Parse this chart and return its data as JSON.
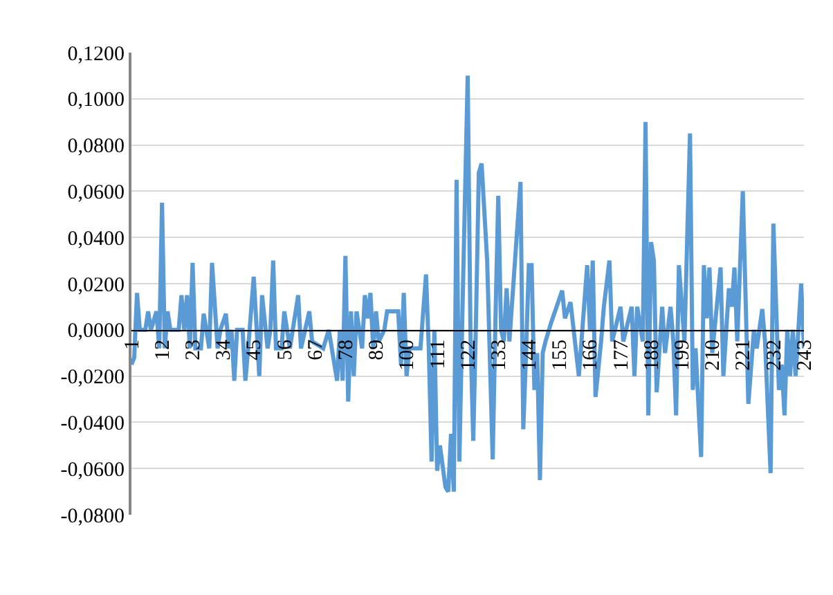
{
  "chart_data": {
    "type": "line",
    "grid": "y",
    "x": [
      1,
      2,
      3,
      4,
      6,
      7,
      8,
      10,
      11,
      12,
      13,
      14,
      15,
      18,
      19,
      20,
      21,
      22,
      23,
      24,
      26,
      27,
      29,
      30,
      32,
      33,
      35,
      36,
      37,
      38,
      39,
      41,
      42,
      43,
      45,
      47,
      48,
      50,
      51,
      52,
      53,
      55,
      56,
      57,
      58,
      61,
      62,
      65,
      66,
      70,
      72,
      75,
      76,
      77,
      78,
      79,
      80,
      81,
      82,
      84,
      85,
      86,
      87,
      88,
      89,
      90,
      92,
      93,
      95,
      97,
      98,
      99,
      100,
      101,
      105,
      107,
      108,
      109,
      110,
      111,
      112,
      114,
      115,
      116,
      117,
      118,
      119,
      120,
      122,
      123,
      124,
      125,
      126,
      127,
      129,
      131,
      132,
      133,
      134,
      135,
      136,
      137,
      141,
      142,
      143,
      144,
      145,
      146,
      147,
      148,
      149,
      150,
      152,
      156,
      157,
      159,
      162,
      165,
      166,
      167,
      168,
      170,
      171,
      173,
      174,
      177,
      178,
      181,
      182,
      183,
      185,
      186,
      187,
      188,
      189,
      190,
      192,
      193,
      195,
      196,
      197,
      198,
      200,
      202,
      203,
      204,
      206,
      207,
      208,
      209,
      210,
      213,
      214,
      216,
      217,
      218,
      219,
      221,
      223,
      225,
      226,
      228,
      229,
      231,
      232,
      234,
      235,
      236,
      237,
      238,
      239,
      240,
      242,
      243
    ],
    "series": [
      {
        "color": "#5b9bd5",
        "values": [
          -0.015,
          -0.012,
          0.016,
          0,
          0,
          0.008,
          0,
          0.008,
          -0.008,
          0.055,
          -0.008,
          0.008,
          0,
          0,
          0.015,
          0,
          0.015,
          -0.008,
          0.029,
          -0.008,
          -0.008,
          0.007,
          -0.008,
          0.029,
          -0.008,
          0,
          0.007,
          -0.008,
          0,
          -0.022,
          0,
          0,
          -0.022,
          -0.008,
          0.023,
          -0.02,
          0.015,
          -0.008,
          0,
          0.03,
          -0.008,
          -0.008,
          0.008,
          0,
          -0.008,
          0.015,
          -0.008,
          0.008,
          -0.005,
          -0.008,
          0,
          -0.022,
          0,
          -0.022,
          0.032,
          -0.031,
          0.008,
          -0.02,
          0.008,
          -0.008,
          0.015,
          0.005,
          0.016,
          -0.008,
          0.008,
          -0.005,
          0,
          0.008,
          0.008,
          0.008,
          -0.015,
          0.016,
          -0.02,
          -0.008,
          -0.008,
          0.024,
          -0.008,
          -0.057,
          0,
          -0.061,
          -0.05,
          -0.068,
          -0.07,
          -0.045,
          -0.07,
          0.065,
          -0.057,
          0.002,
          0.11,
          -0.002,
          -0.048,
          0.005,
          0.068,
          0.072,
          0.03,
          -0.056,
          0.005,
          0.058,
          0,
          -0.005,
          0.018,
          -0.005,
          0.064,
          -0.043,
          -0.01,
          0.028,
          0.028,
          -0.026,
          -0.01,
          -0.065,
          -0.01,
          -0.005,
          0.003,
          0.017,
          0.005,
          0.012,
          -0.02,
          0.028,
          0,
          0.03,
          -0.029,
          -0.005,
          0.01,
          0.03,
          -0.005,
          0.01,
          -0.005,
          0.01,
          -0.02,
          0.01,
          -0.005,
          0.09,
          -0.037,
          0.038,
          0.03,
          -0.027,
          0.01,
          -0.01,
          0.01,
          -0.005,
          -0.037,
          0.028,
          -0.005,
          0.085,
          -0.026,
          -0.008,
          -0.055,
          0.028,
          0.005,
          0.027,
          -0.01,
          0.027,
          -0.02,
          0.018,
          0.01,
          0.027,
          -0.005,
          0.06,
          -0.032,
          0,
          -0.008,
          0.009,
          -0.005,
          -0.062,
          0.046,
          -0.026,
          -0.015,
          -0.037,
          0,
          -0.02,
          0,
          -0.02,
          0.02,
          -0.008
        ]
      }
    ],
    "xlim": [
      1,
      243
    ],
    "xticks": [
      1,
      12,
      23,
      34,
      45,
      56,
      67,
      78,
      89,
      100,
      111,
      122,
      133,
      144,
      155,
      166,
      177,
      188,
      199,
      210,
      221,
      232,
      243
    ],
    "ylim": [
      -0.08,
      0.12
    ],
    "yticks": [
      {
        "value": -0.08,
        "label": "-0,0800"
      },
      {
        "value": -0.06,
        "label": "-0,0600"
      },
      {
        "value": -0.04,
        "label": "-0,0400"
      },
      {
        "value": -0.02,
        "label": "-0,0200"
      },
      {
        "value": 0,
        "label": "0,0000"
      },
      {
        "value": 0.02,
        "label": "0,0200"
      },
      {
        "value": 0.04,
        "label": "0,0400"
      },
      {
        "value": 0.06,
        "label": "0,0600"
      },
      {
        "value": 0.08,
        "label": "0,0800"
      },
      {
        "value": 0.1,
        "label": "0,1000"
      },
      {
        "value": 0.12,
        "label": "0,1200"
      }
    ]
  }
}
